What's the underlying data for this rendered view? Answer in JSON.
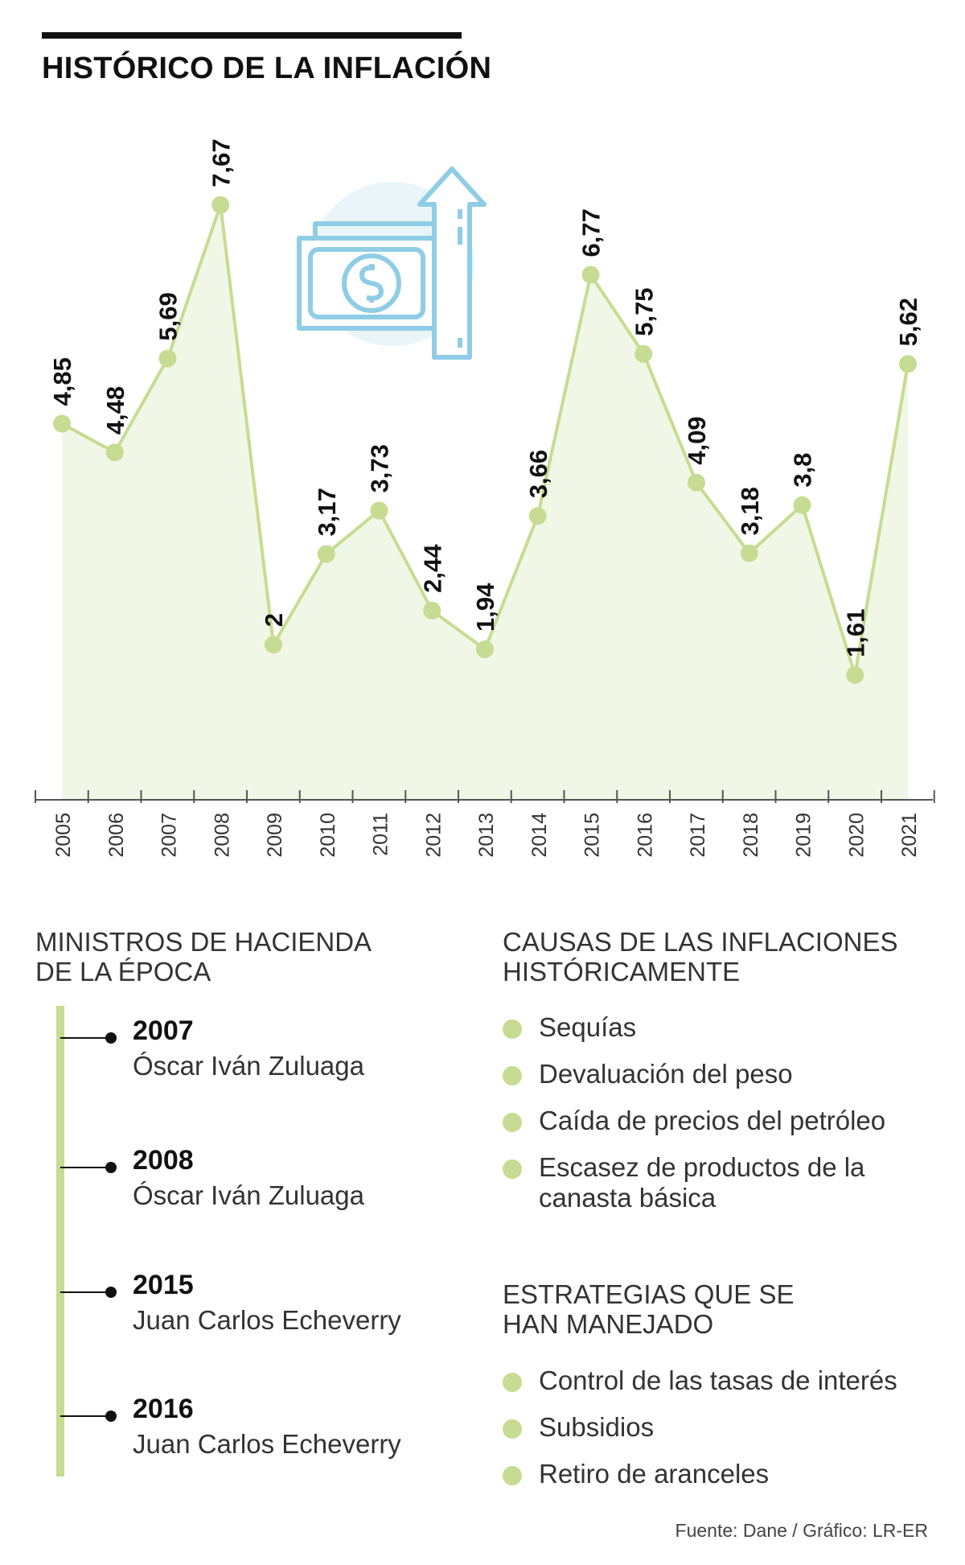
{
  "chart_data": {
    "type": "line",
    "title": "HISTÓRICO DE LA INFLACIÓN",
    "categories": [
      "2005",
      "2006",
      "2007",
      "2008",
      "2009",
      "2010",
      "2011",
      "2012",
      "2013",
      "2014",
      "2015",
      "2016",
      "2017",
      "2018",
      "2019",
      "2020",
      "2021"
    ],
    "values": [
      4.85,
      4.48,
      5.69,
      7.67,
      2,
      3.17,
      3.73,
      2.44,
      1.94,
      3.66,
      6.77,
      5.75,
      4.09,
      3.18,
      3.8,
      1.61,
      5.62
    ],
    "value_labels": [
      "4,85",
      "4,48",
      "5,69",
      "7,67",
      "2",
      "3,17",
      "3,73",
      "2,44",
      "1,94",
      "3,66",
      "6,77",
      "5,75",
      "4,09",
      "3,18",
      "3,8",
      "1,61",
      "5,62"
    ],
    "ylim": [
      0,
      8.3
    ],
    "area_fill": true,
    "grid": false,
    "colors": {
      "line": "#c6dc92",
      "area": "#f1f7e6",
      "axis": "#555555",
      "label": "#111111",
      "icon": "#8fcde6",
      "icon_bg": "#e9f5f8"
    },
    "icon": "money-arrow-up-icon"
  },
  "ministers": {
    "heading_line1": "MINISTROS DE HACIENDA",
    "heading_line2": "DE LA ÉPOCA",
    "items": [
      {
        "year": "2007",
        "name": "Óscar Iván Zuluaga"
      },
      {
        "year": "2008",
        "name": "Óscar Iván Zuluaga"
      },
      {
        "year": "2015",
        "name": "Juan Carlos Echeverry"
      },
      {
        "year": "2016",
        "name": "Juan Carlos Echeverry"
      }
    ]
  },
  "causes": {
    "heading_line1": "CAUSAS DE LAS INFLACIONES",
    "heading_line2": "HISTÓRICAMENTE",
    "items": [
      "Sequías",
      "Devaluación del peso",
      "Caída de precios del petróleo",
      "Escasez de productos de la canasta básica"
    ]
  },
  "strategies": {
    "heading_line1": "ESTRATEGIAS QUE SE",
    "heading_line2": "HAN MANEJADO",
    "items": [
      "Control de las tasas de interés",
      "Subsidios",
      "Retiro de aranceles"
    ]
  },
  "source": "Fuente: Dane / Gráfico: LR-ER"
}
